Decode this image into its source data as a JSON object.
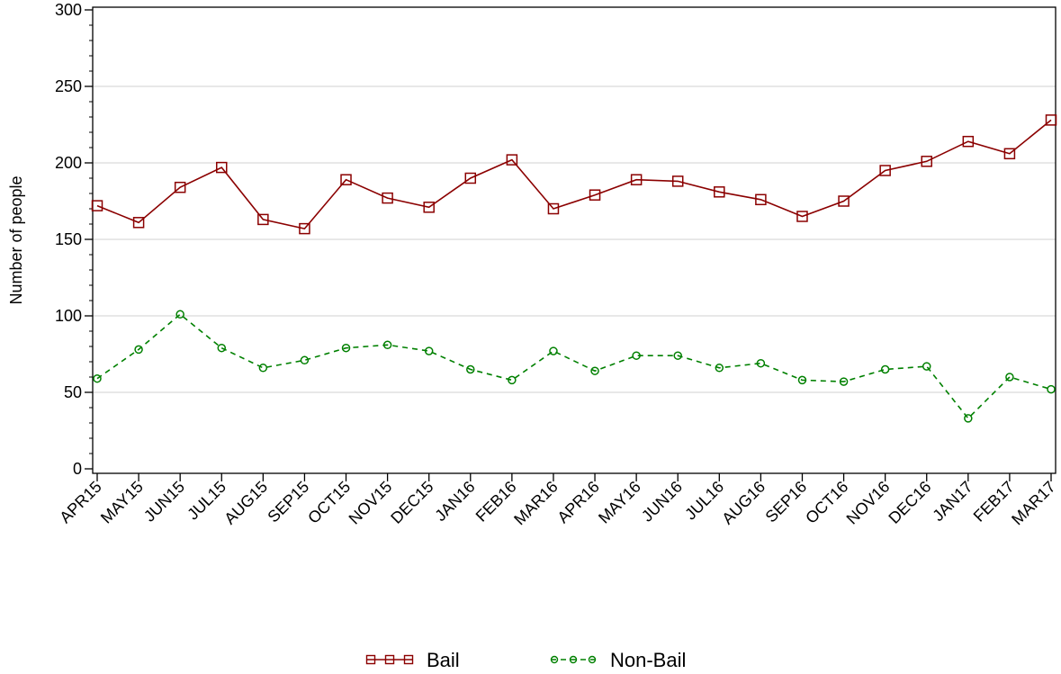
{
  "chart_data": {
    "type": "line",
    "title": "",
    "xlabel": "",
    "ylabel": "Number of people",
    "ylim": [
      0,
      300
    ],
    "yticks": [
      0,
      50,
      100,
      150,
      200,
      250,
      300
    ],
    "grid": "horizontal",
    "legend_position": "bottom",
    "categories": [
      "APR15",
      "MAY15",
      "JUN15",
      "JUL15",
      "AUG15",
      "SEP15",
      "OCT15",
      "NOV15",
      "DEC15",
      "JAN16",
      "FEB16",
      "MAR16",
      "APR16",
      "MAY16",
      "JUN16",
      "JUL16",
      "AUG16",
      "SEP16",
      "OCT16",
      "NOV16",
      "DEC16",
      "JAN17",
      "FEB17",
      "MAR17"
    ],
    "series": [
      {
        "name": "Bail",
        "color": "#8b0000",
        "line_style": "solid",
        "marker": "square",
        "values": [
          172,
          161,
          184,
          197,
          163,
          157,
          189,
          177,
          171,
          190,
          202,
          170,
          179,
          189,
          188,
          181,
          176,
          165,
          175,
          195,
          201,
          214,
          206,
          228
        ]
      },
      {
        "name": "Non-Bail",
        "color": "#008000",
        "line_style": "dashed",
        "marker": "circle",
        "values": [
          59,
          78,
          101,
          79,
          66,
          71,
          79,
          81,
          77,
          65,
          58,
          77,
          64,
          74,
          74,
          66,
          69,
          58,
          57,
          65,
          67,
          33,
          60,
          52
        ]
      }
    ]
  }
}
